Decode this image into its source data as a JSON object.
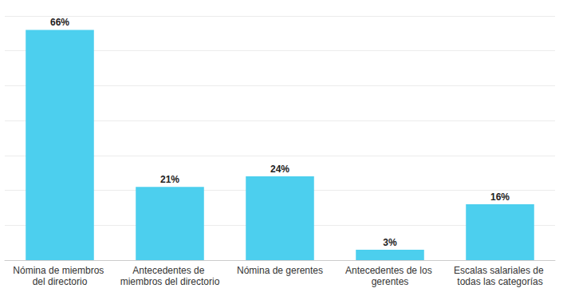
{
  "chart_data": {
    "type": "bar",
    "categories": [
      "Nómina de miembros del directorio",
      "Antecedentes de miembros del directorio",
      "Nómina de gerentes",
      "Antecedentes de los gerentes",
      "Escalas salariales de todas las categorías"
    ],
    "values": [
      66,
      21,
      24,
      3,
      16
    ],
    "value_labels": [
      "66%",
      "21%",
      "24%",
      "3%",
      "16%"
    ],
    "color": "#4ccfee",
    "ylim": [
      0,
      70
    ],
    "yticks": [
      0,
      10,
      20,
      30,
      40,
      50,
      60,
      70
    ],
    "grid": true,
    "data_labels": true,
    "tick_labels": "x"
  }
}
